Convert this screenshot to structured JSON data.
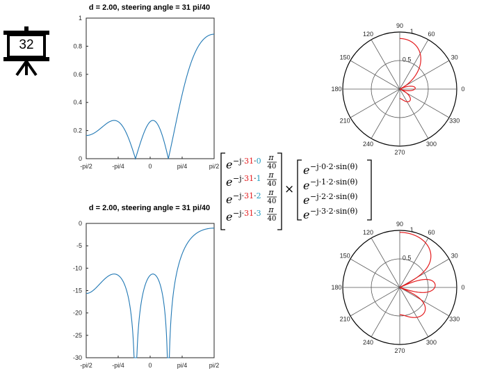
{
  "badge": {
    "label": "32",
    "icon": "presentation-board-icon"
  },
  "colors": {
    "line": "#1f77b4",
    "polar": "#e41a1c",
    "red": "#e41a1c",
    "blue": "#1f9bc0",
    "axis": "#262626"
  },
  "matrix": {
    "prefix": "e",
    "exp_head": "−j·",
    "steer": "31",
    "dot": "·",
    "pi": "π",
    "den": "40",
    "indices": [
      "0",
      "1",
      "2",
      "3"
    ],
    "times": "×",
    "right_rows": [
      "−j·0·2·sin(θ)",
      "−j·1·2·sin(θ)",
      "−j·2·2·sin(θ)",
      "−j·3·2·sin(θ)"
    ]
  },
  "chart_data": [
    {
      "type": "line",
      "title": "d = 2.00, steering angle  = 31 pi/40",
      "xlabel": "",
      "ylabel": "",
      "xlim": [
        "-pi/2",
        "pi/2"
      ],
      "xticks": [
        "-pi/2",
        "-pi/4",
        "0",
        "pi/4",
        "pi/2"
      ],
      "ylim": [
        0,
        1
      ],
      "yticks": [
        "0",
        "0.2",
        "0.4",
        "0.6",
        "0.8",
        "1"
      ],
      "series": [
        {
          "function": "array factor |AF(theta)|, N=4, d=2, steering 31pi/40",
          "scale": "linear"
        }
      ],
      "grid": false
    },
    {
      "type": "line",
      "title": "d = 2.00, steering angle  = 31 pi/40",
      "xlabel": "",
      "ylabel": "",
      "xlim": [
        "-pi/2",
        "pi/2"
      ],
      "xticks": [
        "-pi/2",
        "-pi/4",
        "0",
        "pi/4",
        "pi/2"
      ],
      "ylim": [
        -30,
        0
      ],
      "yticks": [
        "0",
        "-5",
        "-10",
        "-15",
        "-20",
        "-25",
        "-30"
      ],
      "series": [
        {
          "function": "array factor in dB, 20*log10|AF(theta)|",
          "scale": "dB"
        }
      ],
      "grid": false
    },
    {
      "type": "polar",
      "angle_labels": [
        "0",
        "30",
        "60",
        "90",
        "120",
        "150",
        "180",
        "210",
        "240",
        "270",
        "300",
        "330"
      ],
      "radial_labels": [
        "0.5",
        "1"
      ],
      "rlim": [
        0,
        1
      ],
      "series": [
        {
          "function": "|AF(theta)|, plotted over -pi/2..pi/2",
          "scale": "linear"
        }
      ]
    },
    {
      "type": "polar",
      "angle_labels": [
        "0",
        "30",
        "60",
        "90",
        "120",
        "150",
        "180",
        "210",
        "240",
        "270",
        "300",
        "330"
      ],
      "radial_labels": [
        "0.5",
        "1"
      ],
      "rlim": [
        0,
        1
      ],
      "series": [
        {
          "function": "normalized dB pattern, plotted over -pi/2..pi/2",
          "scale": "dB"
        }
      ]
    }
  ]
}
